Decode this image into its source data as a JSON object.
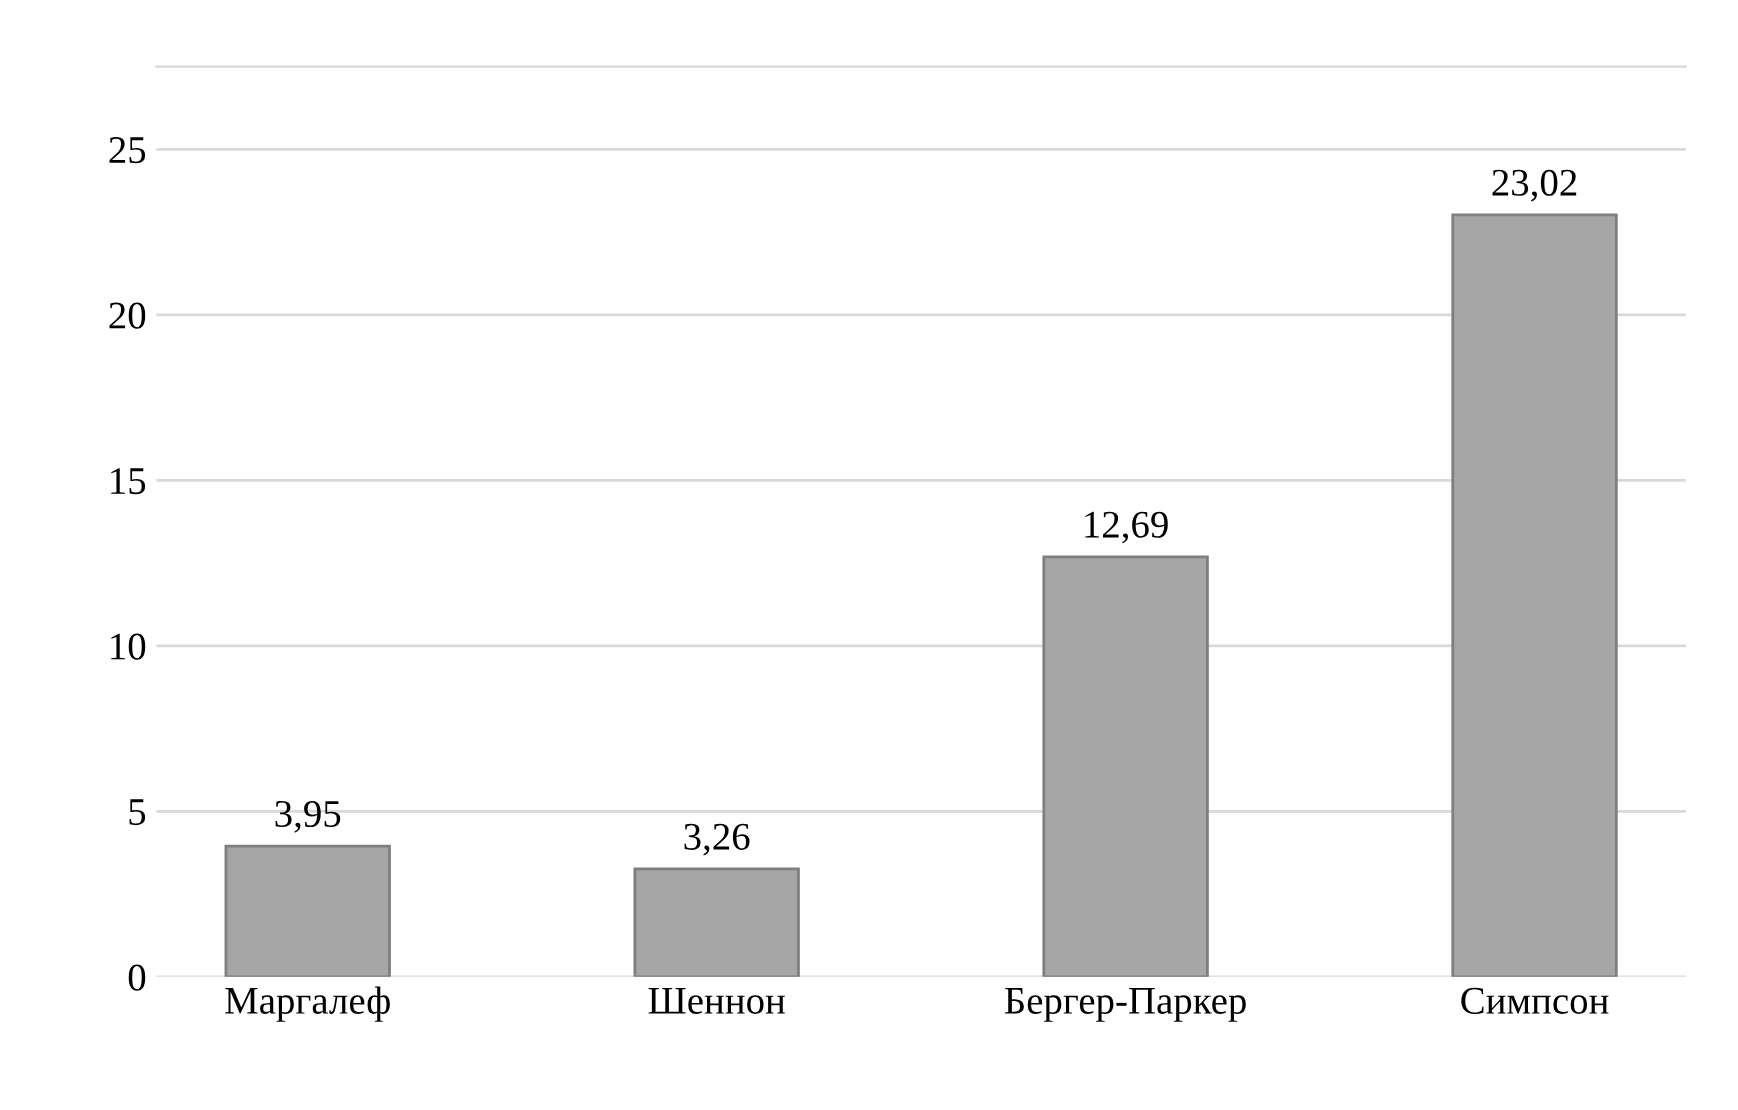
{
  "chart_data": {
    "type": "bar",
    "categories": [
      "Маргалеф",
      "Шеннон",
      "Бергер-Паркер",
      "Симпсон"
    ],
    "values": [
      3.95,
      3.26,
      12.69,
      23.02
    ],
    "value_labels": [
      "3,95",
      "3,26",
      "12,69",
      "23,02"
    ],
    "color": "#a6a6a6",
    "ylim": [
      0,
      27.5
    ],
    "yticks": [
      0,
      5,
      10,
      15,
      20,
      25
    ],
    "grid": "y"
  }
}
